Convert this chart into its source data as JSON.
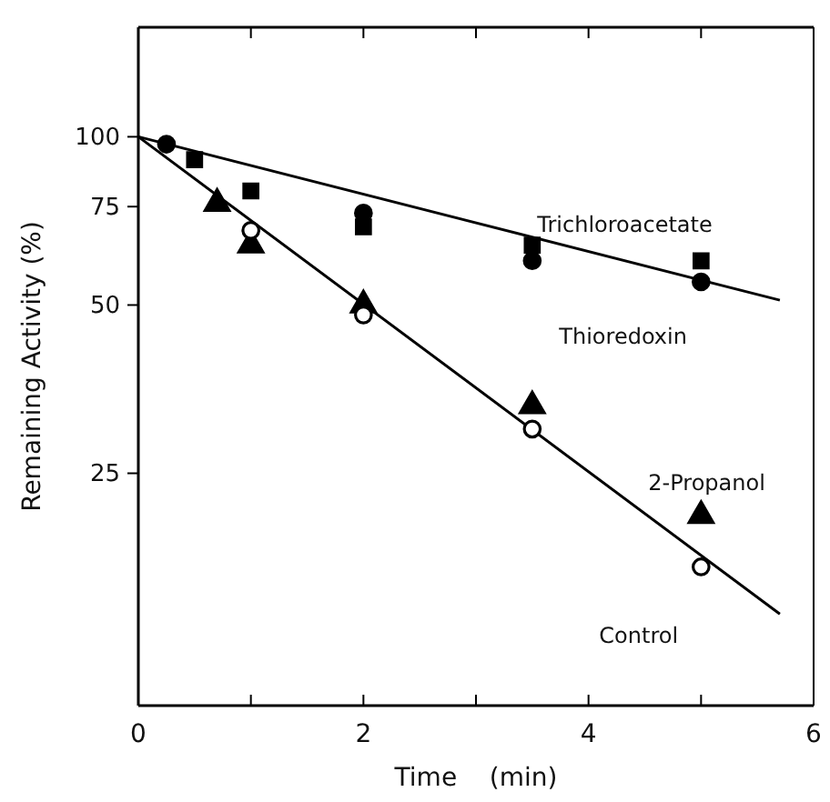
{
  "chart_data": {
    "type": "scatter",
    "xlabel": "Time    (min)",
    "ylabel": "Remaining Activity (%)",
    "log": true,
    "xlim": [
      0,
      6
    ],
    "xticks": [
      0,
      {
        "value": 1,
        "label": null
      },
      2,
      {
        "value": 3,
        "label": null
      },
      4,
      {
        "value": 5,
        "label": null
      },
      6
    ],
    "ylim": [
      9.6,
      157
    ],
    "yticks": [
      25,
      50,
      75,
      100
    ],
    "grid": false,
    "series": [
      {
        "type": "line",
        "color": "#000000",
        "x": [
          0,
          5.7
        ],
        "values": [
          100,
          51
        ]
      },
      {
        "type": "line",
        "color": "#000000",
        "x": [
          0,
          5.7
        ],
        "values": [
          100,
          14
        ]
      },
      {
        "name": "Trichloroacetate",
        "color": "#000000",
        "marker": "square",
        "x": [
          0.5,
          1,
          2,
          3.5,
          5
        ],
        "values": [
          91,
          80,
          69,
          64,
          60
        ]
      },
      {
        "name": "Thioredoxin",
        "color": "#000000",
        "marker": "circle",
        "x": [
          0.25,
          2,
          3.5,
          5
        ],
        "values": [
          97,
          73,
          60,
          55
        ]
      },
      {
        "name": "2-Propanol",
        "color": "#000000",
        "marker": "triangle",
        "x": [
          0.7,
          1,
          2,
          3.5,
          5
        ],
        "values": [
          76,
          64,
          50,
          33,
          21
        ]
      },
      {
        "name": "Control",
        "color": "#ffffff",
        "marker": "circle",
        "x": [
          1,
          2,
          3.5,
          5
        ],
        "values": [
          68,
          48,
          30,
          17
        ]
      }
    ]
  }
}
